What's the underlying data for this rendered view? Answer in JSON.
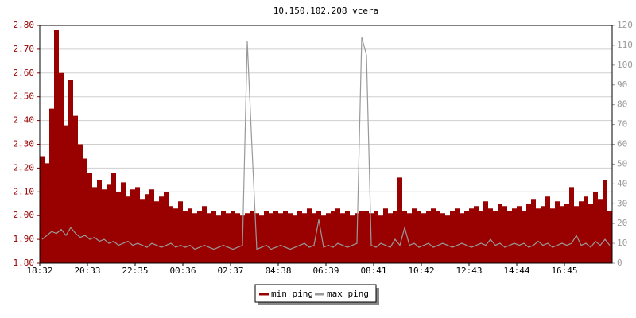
{
  "chart_data": {
    "type": "area-line",
    "title": "10.150.102.208 vcera",
    "categories": [
      "18:32",
      null,
      null,
      null,
      null,
      null,
      null,
      null,
      null,
      null,
      "20:33",
      null,
      null,
      null,
      null,
      null,
      null,
      null,
      null,
      null,
      "22:35",
      null,
      null,
      null,
      null,
      null,
      null,
      null,
      null,
      null,
      "00:36",
      null,
      null,
      null,
      null,
      null,
      null,
      null,
      null,
      null,
      "02:37",
      null,
      null,
      null,
      null,
      null,
      null,
      null,
      null,
      null,
      "04:38",
      null,
      null,
      null,
      null,
      null,
      null,
      null,
      null,
      null,
      "06:39",
      null,
      null,
      null,
      null,
      null,
      null,
      null,
      null,
      null,
      "08:41",
      null,
      null,
      null,
      null,
      null,
      null,
      null,
      null,
      null,
      "10:42",
      null,
      null,
      null,
      null,
      null,
      null,
      null,
      null,
      null,
      "12:43",
      null,
      null,
      null,
      null,
      null,
      null,
      null,
      null,
      null,
      "14:44",
      null,
      null,
      null,
      null,
      null,
      null,
      null,
      null,
      null,
      "16:45",
      null,
      null,
      null,
      null,
      null,
      null,
      null,
      null,
      null
    ],
    "series": [
      {
        "name": "min ping",
        "color": "#990000",
        "axis": "y",
        "values": [
          2.25,
          2.22,
          2.45,
          2.78,
          2.6,
          2.38,
          2.57,
          2.42,
          2.3,
          2.24,
          2.18,
          2.12,
          2.15,
          2.11,
          2.13,
          2.18,
          2.1,
          2.14,
          2.08,
          2.11,
          2.12,
          2.07,
          2.09,
          2.11,
          2.06,
          2.08,
          2.1,
          2.04,
          2.03,
          2.06,
          2.02,
          2.03,
          2.01,
          2.02,
          2.04,
          2.01,
          2.02,
          2.0,
          2.02,
          2.01,
          2.02,
          2.01,
          2.0,
          2.01,
          2.02,
          2.01,
          2.0,
          2.02,
          2.01,
          2.02,
          2.01,
          2.02,
          2.01,
          2.0,
          2.02,
          2.01,
          2.03,
          2.01,
          2.02,
          2.0,
          2.01,
          2.02,
          2.03,
          2.01,
          2.02,
          2.0,
          2.01,
          2.02,
          2.02,
          2.01,
          2.02,
          2.0,
          2.03,
          2.01,
          2.02,
          2.16,
          2.02,
          2.01,
          2.03,
          2.02,
          2.01,
          2.02,
          2.03,
          2.02,
          2.01,
          2.0,
          2.02,
          2.03,
          2.01,
          2.02,
          2.03,
          2.04,
          2.02,
          2.06,
          2.03,
          2.02,
          2.05,
          2.04,
          2.02,
          2.03,
          2.04,
          2.02,
          2.05,
          2.07,
          2.03,
          2.04,
          2.08,
          2.03,
          2.06,
          2.04,
          2.05,
          2.12,
          2.04,
          2.06,
          2.08,
          2.05,
          2.1,
          2.07,
          2.15,
          2.02
        ]
      },
      {
        "name": "max ping",
        "color": "#999999",
        "axis": "y2",
        "values": [
          12,
          14,
          16,
          15,
          17,
          14,
          18,
          15,
          13,
          14,
          12,
          13,
          11,
          12,
          10,
          11,
          9,
          10,
          11,
          9,
          10,
          9,
          8,
          10,
          9,
          8,
          9,
          10,
          8,
          9,
          8,
          9,
          7,
          8,
          9,
          8,
          7,
          8,
          9,
          8,
          7,
          8,
          9,
          112,
          58,
          7,
          8,
          9,
          7,
          8,
          9,
          8,
          7,
          8,
          9,
          10,
          8,
          9,
          22,
          8,
          9,
          8,
          10,
          9,
          8,
          9,
          10,
          114,
          105,
          9,
          8,
          10,
          9,
          8,
          12,
          9,
          18,
          9,
          10,
          8,
          9,
          10,
          8,
          9,
          10,
          9,
          8,
          9,
          10,
          9,
          8,
          9,
          10,
          9,
          12,
          9,
          10,
          8,
          9,
          10,
          9,
          10,
          8,
          9,
          11,
          9,
          10,
          8,
          9,
          10,
          9,
          10,
          14,
          9,
          10,
          8,
          11,
          9,
          12,
          9
        ]
      }
    ],
    "ylim": [
      1.8,
      2.8
    ],
    "yticks": [
      {
        "value": 1.8,
        "label": "1.80"
      },
      {
        "value": 1.9,
        "label": "1.90"
      },
      {
        "value": 2.0,
        "label": "2.00"
      },
      {
        "value": 2.1,
        "label": "2.10"
      },
      {
        "value": 2.2,
        "label": "2.20"
      },
      {
        "value": 2.3,
        "label": "2.30"
      },
      {
        "value": 2.4,
        "label": "2.40"
      },
      {
        "value": 2.5,
        "label": "2.50"
      },
      {
        "value": 2.6,
        "label": "2.60"
      },
      {
        "value": 2.7,
        "label": "2.70"
      },
      {
        "value": 2.8,
        "label": "2.80"
      }
    ],
    "y2lim": [
      0,
      120
    ],
    "y2ticks": [
      0,
      10,
      20,
      30,
      40,
      50,
      60,
      70,
      80,
      90,
      100,
      110,
      120
    ],
    "grid": true,
    "legend": "bottom"
  }
}
